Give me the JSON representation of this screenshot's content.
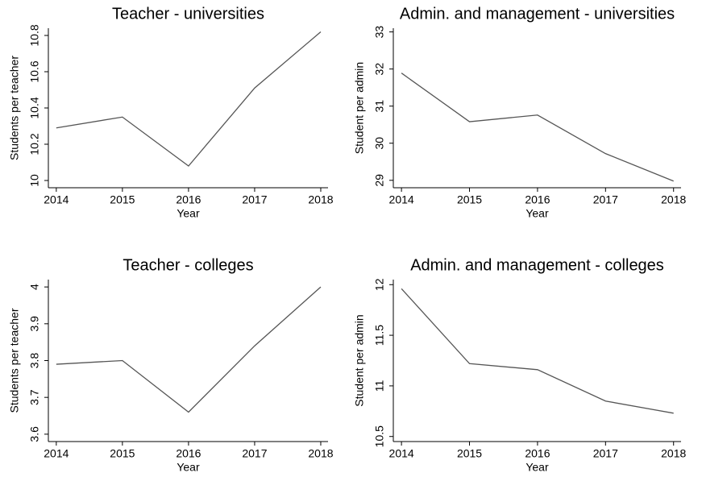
{
  "chart_data": [
    {
      "type": "line",
      "title": "Teacher - universities",
      "xlabel": "Year",
      "ylabel": "Students per teacher",
      "x": [
        2014,
        2015,
        2016,
        2017,
        2018
      ],
      "values": [
        10.29,
        10.35,
        10.08,
        10.51,
        10.82
      ],
      "color": "#555555",
      "xlim": [
        2013.88,
        2018.11
      ],
      "ylim": [
        9.96,
        10.84
      ],
      "xticks": [
        2014,
        2015,
        2016,
        2017,
        2018
      ],
      "yticks": [
        10,
        10.2,
        10.4,
        10.6,
        10.8
      ]
    },
    {
      "type": "line",
      "title": "Admin. and management - universities",
      "xlabel": "Year",
      "ylabel": "Student per admin",
      "x": [
        2014,
        2015,
        2016,
        2017,
        2018
      ],
      "values": [
        31.89,
        30.58,
        30.76,
        29.72,
        28.98
      ],
      "color": "#555555",
      "xlim": [
        2013.88,
        2018.11
      ],
      "ylim": [
        28.8,
        33.1
      ],
      "xticks": [
        2014,
        2015,
        2016,
        2017,
        2018
      ],
      "yticks": [
        29,
        30,
        31,
        32,
        33
      ]
    },
    {
      "type": "line",
      "title": "Teacher - colleges",
      "xlabel": "Year",
      "ylabel": "Students per teacher",
      "x": [
        2014,
        2015,
        2016,
        2017,
        2018
      ],
      "values": [
        3.79,
        3.8,
        3.66,
        3.84,
        4.0
      ],
      "color": "#555555",
      "xlim": [
        2013.88,
        2018.11
      ],
      "ylim": [
        3.58,
        4.02
      ],
      "xticks": [
        2014,
        2015,
        2016,
        2017,
        2018
      ],
      "yticks": [
        3.6,
        3.7,
        3.8,
        3.9,
        4
      ]
    },
    {
      "type": "line",
      "title": "Admin. and management - colleges",
      "xlabel": "Year",
      "ylabel": "Student per admin",
      "x": [
        2014,
        2015,
        2016,
        2017,
        2018
      ],
      "values": [
        11.96,
        11.22,
        11.16,
        10.85,
        10.73
      ],
      "color": "#555555",
      "xlim": [
        2013.88,
        2018.11
      ],
      "ylim": [
        10.45,
        12.05
      ],
      "xticks": [
        2014,
        2015,
        2016,
        2017,
        2018
      ],
      "yticks": [
        10.5,
        11,
        11.5,
        12
      ]
    }
  ]
}
